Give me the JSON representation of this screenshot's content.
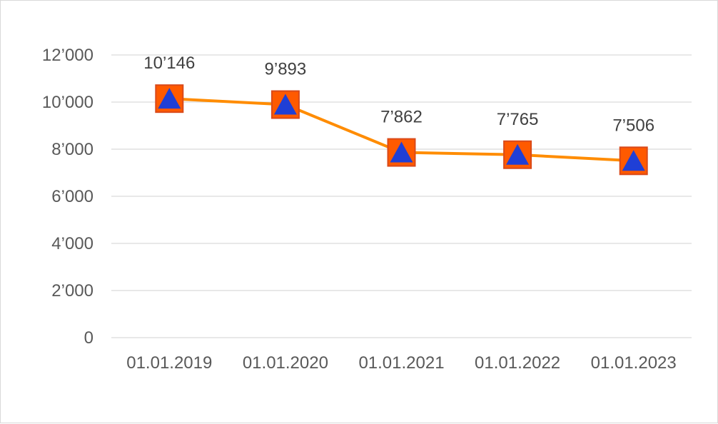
{
  "chart_data": {
    "type": "line",
    "categories": [
      "01.01.2019",
      "01.01.2020",
      "01.01.2021",
      "01.01.2022",
      "01.01.2023"
    ],
    "values": [
      10146,
      9893,
      7862,
      7765,
      7506
    ],
    "value_labels": [
      "10’146",
      "9’893",
      "7’862",
      "7’765",
      "7’506"
    ],
    "y_ticks": [
      0,
      2000,
      4000,
      6000,
      8000,
      10000,
      12000
    ],
    "y_tick_labels": [
      "0",
      "2’000",
      "4’000",
      "6’000",
      "8’000",
      "10’000",
      "12’000"
    ],
    "ylim": [
      0,
      12000
    ],
    "grid": true,
    "legend": "none",
    "title": "",
    "xlabel": "",
    "ylabel": "",
    "colors": {
      "line": "#ff8c00",
      "marker_fill": "#ff5a00",
      "marker_border": "#d94a1a",
      "marker_triangle": "#1f3fd6",
      "grid": "#d9d9d9",
      "tick_text": "#595959",
      "label_text": "#404040"
    },
    "marker": "square-with-triangle"
  }
}
